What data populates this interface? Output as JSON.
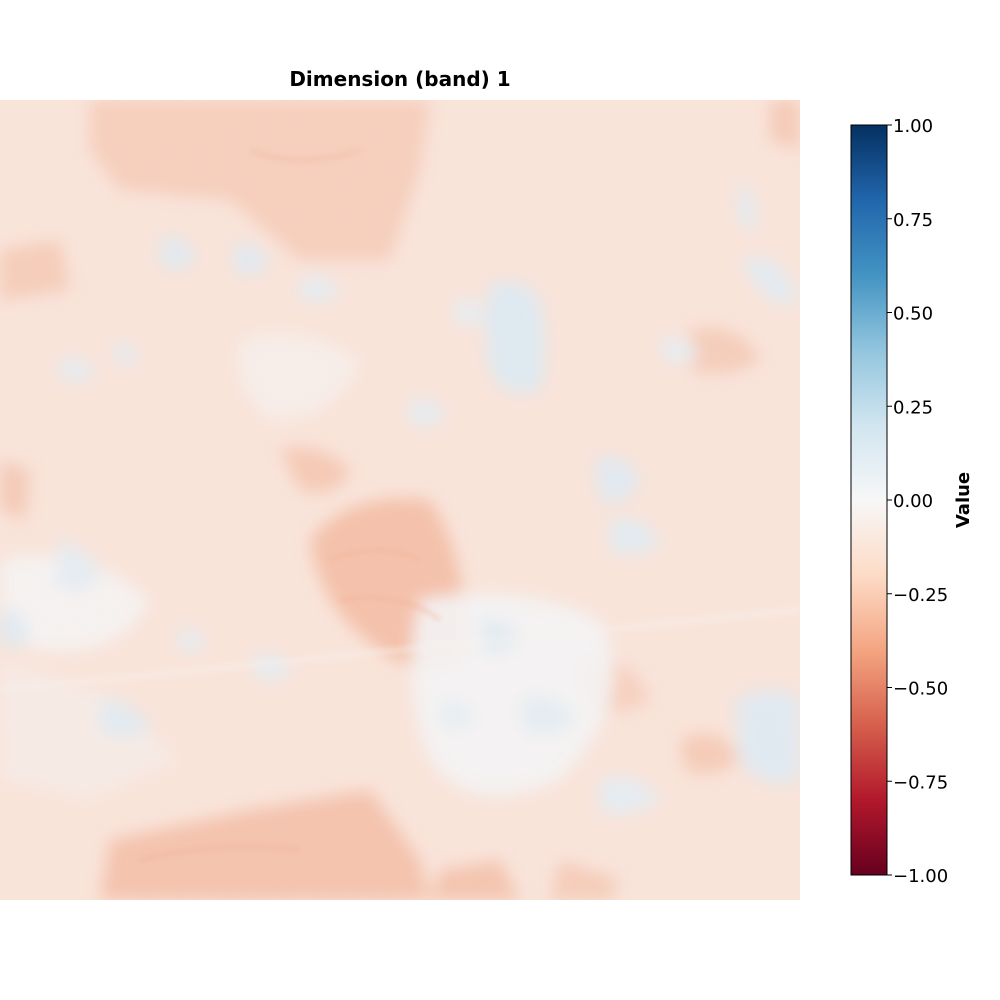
{
  "chart_data": {
    "type": "heatmap",
    "title": "Dimension (band) 1",
    "colormap": "RdBu",
    "colorbar": {
      "label": "Value",
      "vmin": -1.0,
      "vmax": 1.0,
      "ticks": [
        1.0,
        0.75,
        0.5,
        0.25,
        0.0,
        -0.25,
        -0.5,
        -0.75,
        -1.0
      ],
      "tick_labels": [
        "1.00",
        "0.75",
        "0.50",
        "0.25",
        "0.00",
        "−0.25",
        "−0.50",
        "−0.75",
        "−1.00"
      ]
    },
    "value_range_observed": [
      -0.3,
      0.15
    ],
    "axes_visible": false,
    "colorbar_position": "right"
  }
}
